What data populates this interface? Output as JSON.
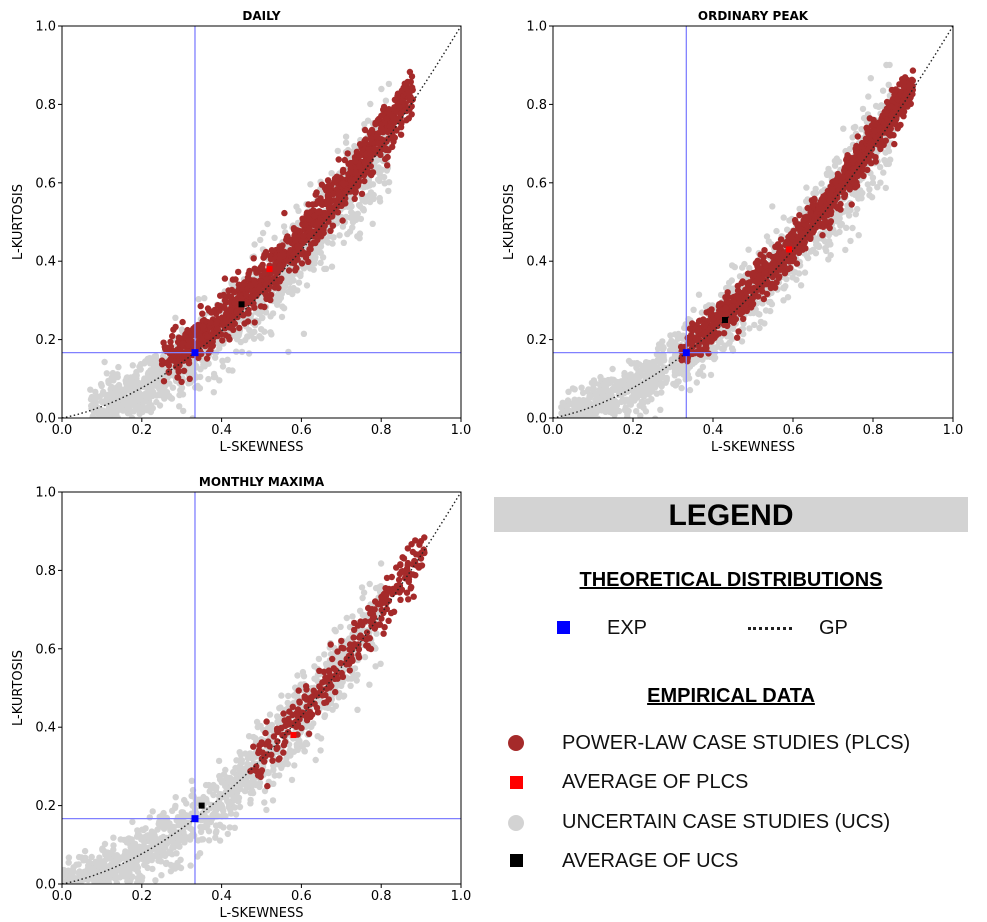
{
  "colors": {
    "plcs": "#a52a2a",
    "plcs_avg": "#ff0000",
    "ucs": "#d3d3d3",
    "ucs_avg": "#000000",
    "exp": "#0000ff",
    "exp_line": "#8080ff",
    "gp": "#222222"
  },
  "chart_data": [
    {
      "type": "scatter",
      "title": "DAILY",
      "xlabel": "L-SKEWNESS",
      "ylabel": "L-KURTOSIS",
      "xlim": [
        0.0,
        1.0
      ],
      "ylim": [
        0.0,
        1.0
      ],
      "ticks": [
        "0.0",
        "0.2",
        "0.4",
        "0.6",
        "0.8",
        "1.0"
      ],
      "exp_point": [
        0.3333,
        0.1667
      ],
      "plcs_avg": [
        0.52,
        0.38
      ],
      "ucs_avg": [
        0.45,
        0.29
      ],
      "ucs_cloud": {
        "x_range": [
          0.07,
          0.82
        ],
        "spread": 0.05,
        "count": 1400
      },
      "plcs_cloud": {
        "x_range": [
          0.25,
          0.88
        ],
        "offset": 0.03,
        "spread": 0.03,
        "count": 1100
      }
    },
    {
      "type": "scatter",
      "title": "ORDINARY PEAK",
      "xlabel": "L-SKEWNESS",
      "ylabel": "L-KURTOSIS",
      "xlim": [
        0.0,
        1.0
      ],
      "ylim": [
        0.0,
        1.0
      ],
      "ticks": [
        "0.0",
        "0.2",
        "0.4",
        "0.6",
        "0.8",
        "1.0"
      ],
      "exp_point": [
        0.3333,
        0.1667
      ],
      "plcs_avg": [
        0.59,
        0.43
      ],
      "ucs_avg": [
        0.43,
        0.25
      ],
      "ucs_cloud": {
        "x_range": [
          0.02,
          0.85
        ],
        "spread": 0.045,
        "count": 1400
      },
      "plcs_cloud": {
        "x_range": [
          0.32,
          0.9
        ],
        "offset": 0.012,
        "spread": 0.025,
        "count": 1100
      }
    },
    {
      "type": "scatter",
      "title": "MONTHLY MAXIMA",
      "xlabel": "L-SKEWNESS",
      "ylabel": "L-KURTOSIS",
      "xlim": [
        0.0,
        1.0
      ],
      "ylim": [
        0.0,
        1.0
      ],
      "ticks": [
        "0.0",
        "0.2",
        "0.4",
        "0.6",
        "0.8",
        "1.0"
      ],
      "exp_point": [
        0.3333,
        0.1667
      ],
      "plcs_avg": [
        0.58,
        0.38
      ],
      "ucs_avg": [
        0.35,
        0.2
      ],
      "ucs_cloud": {
        "x_range": [
          0.0,
          0.8
        ],
        "spread": 0.045,
        "count": 1200
      },
      "plcs_cloud": {
        "x_range": [
          0.47,
          0.91
        ],
        "offset": 0.01,
        "spread": 0.03,
        "count": 300
      }
    }
  ],
  "legend": {
    "title": "LEGEND",
    "theoretical_title": "THEORETICAL DISTRIBUTIONS",
    "exp_label": "EXP",
    "gp_label": "GP",
    "empirical_title": "EMPIRICAL DATA",
    "plcs_label": "POWER-LAW CASE STUDIES (PLCS)",
    "plcs_avg_label": "AVERAGE OF PLCS",
    "ucs_label": "UNCERTAIN CASE STUDIES (UCS)",
    "ucs_avg_label": "AVERAGE OF UCS"
  }
}
